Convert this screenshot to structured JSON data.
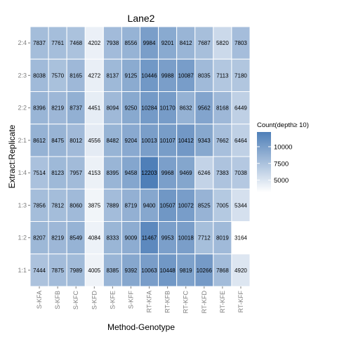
{
  "chart_data": {
    "type": "heatmap",
    "title": "Lane2",
    "xlabel": "Method-Genotype",
    "ylabel": "Extract:Replicate",
    "x_categories": [
      "S-KFA",
      "S-KFB",
      "S-KFC",
      "S-KFD",
      "S-KFE",
      "S-KFF",
      "RT-KFA",
      "RT-KFB",
      "RT-KFC",
      "RT-KFD",
      "RT-KFE",
      "RT-KFF"
    ],
    "y_categories": [
      "2:4",
      "2:3",
      "2:2",
      "2:1",
      "1:4",
      "1:3",
      "1:2",
      "1:1"
    ],
    "values": [
      [
        7837,
        7761,
        7468,
        4202,
        7938,
        8556,
        9984,
        9201,
        8412,
        7687,
        5820,
        7803
      ],
      [
        8038,
        7570,
        8165,
        4272,
        8137,
        9125,
        10446,
        9988,
        10087,
        8035,
        7113,
        7180
      ],
      [
        8396,
        8219,
        8737,
        4451,
        8094,
        9250,
        10284,
        10170,
        8632,
        9562,
        8168,
        6449
      ],
      [
        8612,
        8475,
        8012,
        4556,
        8482,
        9204,
        10013,
        10107,
        10412,
        9343,
        7662,
        6464
      ],
      [
        7514,
        8123,
        7957,
        4153,
        8395,
        9458,
        12203,
        9968,
        9469,
        6246,
        7383,
        7038
      ],
      [
        7856,
        7812,
        8060,
        3875,
        7889,
        8719,
        9400,
        10507,
        10072,
        8525,
        7005,
        5344
      ],
      [
        8207,
        8219,
        8549,
        4084,
        8333,
        9009,
        11467,
        9953,
        10018,
        7712,
        8019,
        3164
      ],
      [
        7444,
        7875,
        7989,
        4005,
        8385,
        9392,
        10063,
        10448,
        9819,
        10266,
        7868,
        4920
      ]
    ],
    "color_scale": {
      "low_color": "#ffffff",
      "high_color": "#4f7fb8",
      "min": 3164,
      "max": 12203
    },
    "legend": {
      "title": "Count(depth≥ 10)",
      "ticks": [
        5000,
        7500,
        10000
      ],
      "placement": "right"
    },
    "grid": true,
    "panel_background": "#ebebeb"
  }
}
